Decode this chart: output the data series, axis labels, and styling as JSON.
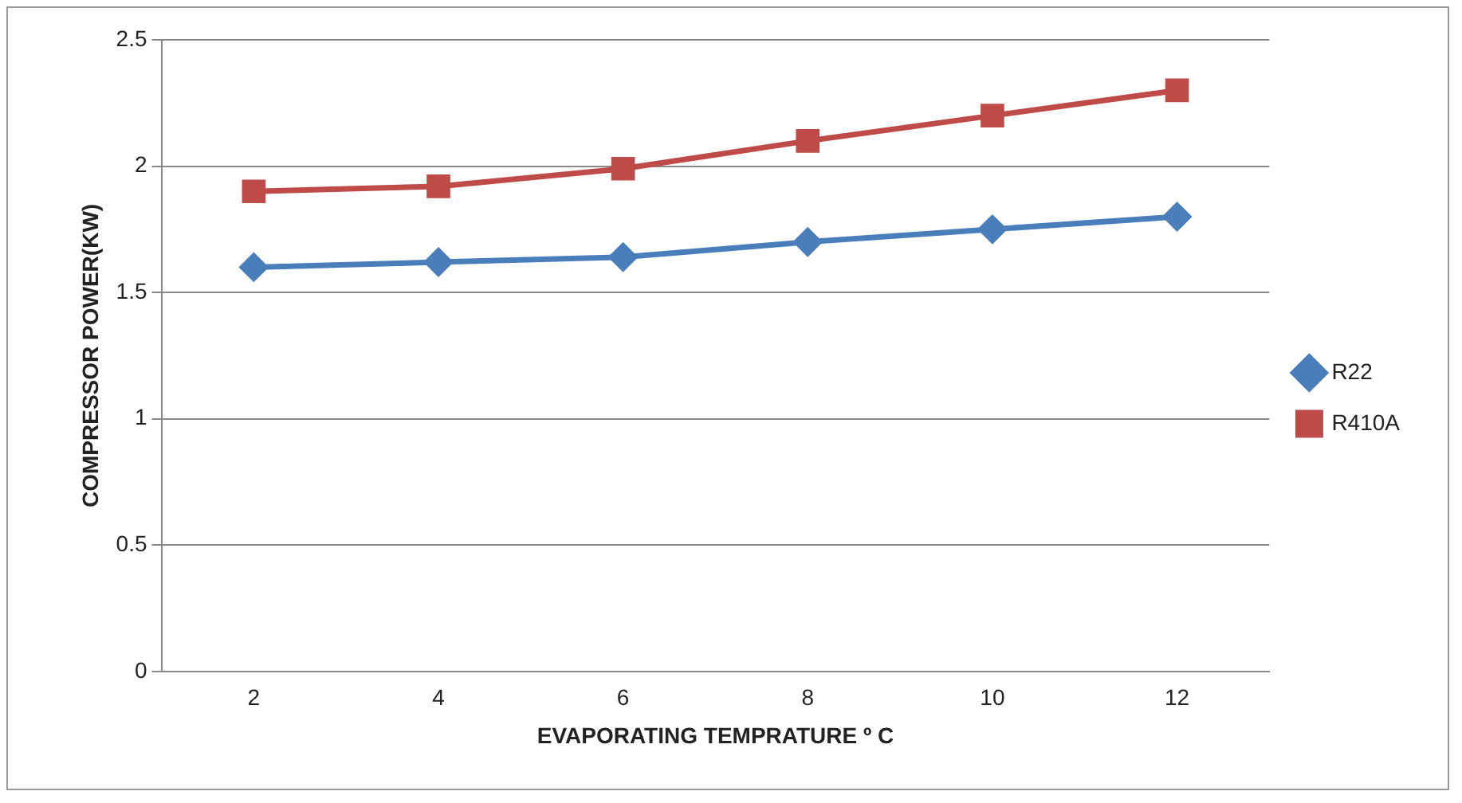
{
  "chart_data": {
    "type": "line",
    "xlabel": "EVAPORATING TEMPRATURE º C",
    "ylabel": "COMPRESSOR POWER(KW)",
    "categories": [
      "2",
      "4",
      "6",
      "8",
      "10",
      "12"
    ],
    "series": [
      {
        "name": "R22",
        "color": "#4a7ebb",
        "values": [
          1.6,
          1.62,
          1.64,
          1.7,
          1.75,
          1.8
        ],
        "marker": "diamond"
      },
      {
        "name": "R410A",
        "color": "#be4b48",
        "values": [
          1.9,
          1.92,
          1.99,
          2.1,
          2.2,
          2.3
        ],
        "marker": "square"
      }
    ],
    "ylim": [
      0,
      2.5
    ],
    "yticks": [
      0,
      0.5,
      1,
      1.5,
      2,
      2.5
    ],
    "grid": "y",
    "legend": "right"
  }
}
